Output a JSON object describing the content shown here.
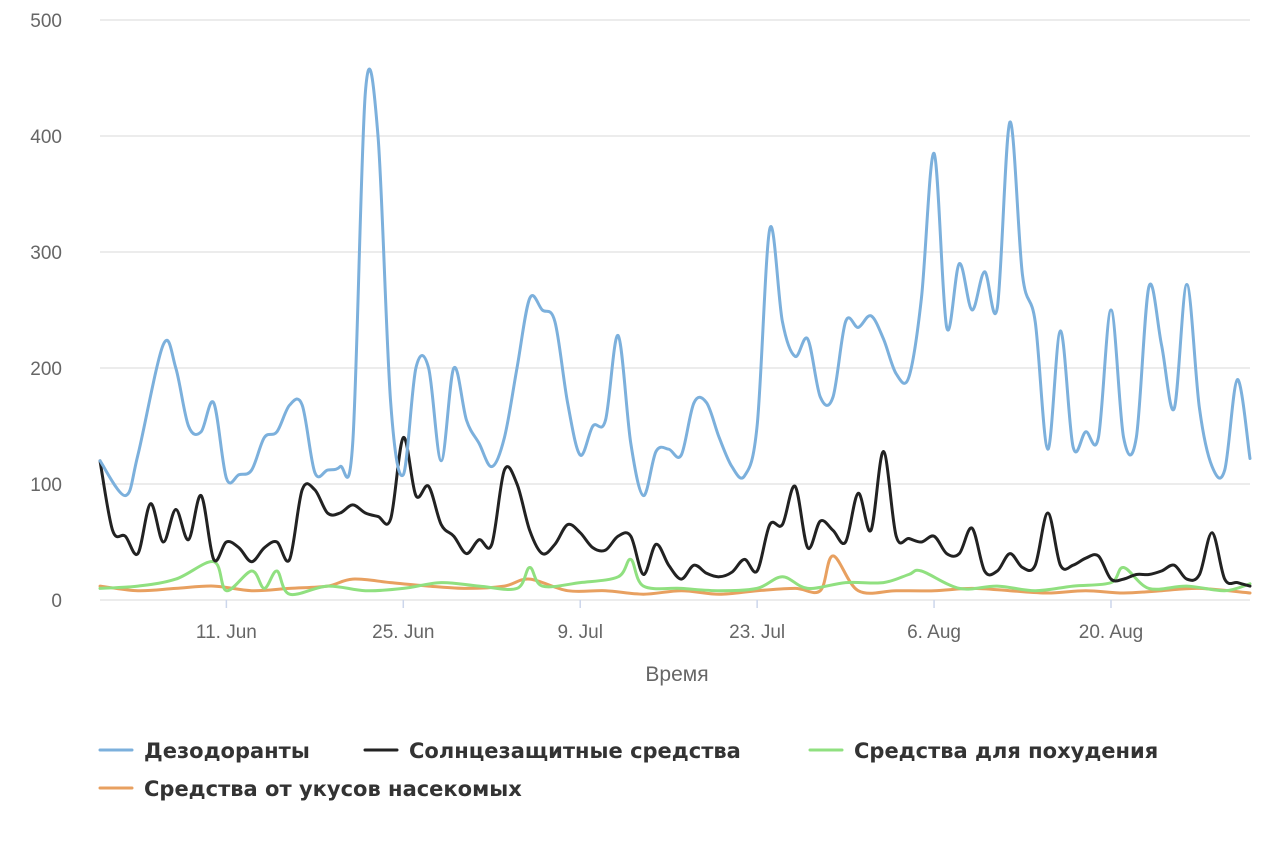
{
  "chart_data": {
    "type": "line",
    "title": "",
    "xlabel": "Время",
    "ylabel": "",
    "ylim": [
      0,
      500
    ],
    "y_ticks": [
      0,
      100,
      200,
      300,
      400,
      500
    ],
    "x_tick_labels": [
      "11. Jun",
      "25. Jun",
      "9. Jul",
      "23. Jul",
      "6. Aug",
      "20. Aug"
    ],
    "x_tick_dates": [
      "2018-06-11",
      "2018-06-25",
      "2018-07-09",
      "2018-07-23",
      "2018-08-06",
      "2018-08-20"
    ],
    "x_range": [
      "2018-06-01",
      "2018-08-31"
    ],
    "grid": true,
    "legend_position": "bottom-left",
    "series": [
      {
        "name": "Дезодоранты",
        "color": "#7cb0dc",
        "x": [
          "2018-06-01",
          "2018-06-03",
          "2018-06-04",
          "2018-06-06",
          "2018-06-07",
          "2018-06-08",
          "2018-06-09",
          "2018-06-10",
          "2018-06-11",
          "2018-06-12",
          "2018-06-13",
          "2018-06-14",
          "2018-06-15",
          "2018-06-16",
          "2018-06-17",
          "2018-06-18",
          "2018-06-19",
          "2018-06-20",
          "2018-06-21",
          "2018-06-22",
          "2018-06-23",
          "2018-06-24",
          "2018-06-25",
          "2018-06-26",
          "2018-06-27",
          "2018-06-28",
          "2018-06-29",
          "2018-06-30",
          "2018-07-01",
          "2018-07-02",
          "2018-07-03",
          "2018-07-04",
          "2018-07-05",
          "2018-07-06",
          "2018-07-07",
          "2018-07-08",
          "2018-07-09",
          "2018-07-10",
          "2018-07-11",
          "2018-07-12",
          "2018-07-13",
          "2018-07-14",
          "2018-07-15",
          "2018-07-16",
          "2018-07-17",
          "2018-07-18",
          "2018-07-19",
          "2018-07-20",
          "2018-07-21",
          "2018-07-22",
          "2018-07-23",
          "2018-07-24",
          "2018-07-25",
          "2018-07-26",
          "2018-07-27",
          "2018-07-28",
          "2018-07-29",
          "2018-07-30",
          "2018-07-31",
          "2018-08-01",
          "2018-08-02",
          "2018-08-03",
          "2018-08-04",
          "2018-08-05",
          "2018-08-06",
          "2018-08-07",
          "2018-08-08",
          "2018-08-09",
          "2018-08-10",
          "2018-08-11",
          "2018-08-12",
          "2018-08-13",
          "2018-08-14",
          "2018-08-15",
          "2018-08-16",
          "2018-08-17",
          "2018-08-18",
          "2018-08-19",
          "2018-08-20",
          "2018-08-21",
          "2018-08-22",
          "2018-08-23",
          "2018-08-24",
          "2018-08-25",
          "2018-08-26",
          "2018-08-27",
          "2018-08-28",
          "2018-08-29",
          "2018-08-30",
          "2018-08-31"
        ],
        "values": [
          120,
          90,
          125,
          220,
          200,
          150,
          145,
          170,
          105,
          108,
          112,
          140,
          145,
          168,
          168,
          110,
          112,
          115,
          135,
          438,
          400,
          170,
          108,
          200,
          200,
          120,
          200,
          155,
          135,
          115,
          140,
          200,
          260,
          250,
          240,
          170,
          125,
          150,
          155,
          228,
          135,
          90,
          128,
          130,
          125,
          170,
          170,
          140,
          115,
          107,
          150,
          320,
          240,
          210,
          225,
          175,
          175,
          240,
          235,
          245,
          225,
          195,
          192,
          260,
          385,
          235,
          290,
          250,
          283,
          252,
          412,
          280,
          240,
          130,
          232,
          132,
          145,
          140,
          250,
          140,
          140,
          270,
          220,
          165,
          272,
          165,
          115,
          112,
          190,
          122
        ]
      },
      {
        "name": "Солнцезащитные средства",
        "color": "#222222",
        "x": [
          "2018-06-01",
          "2018-06-02",
          "2018-06-03",
          "2018-06-04",
          "2018-06-05",
          "2018-06-06",
          "2018-06-07",
          "2018-06-08",
          "2018-06-09",
          "2018-06-10",
          "2018-06-11",
          "2018-06-12",
          "2018-06-13",
          "2018-06-14",
          "2018-06-15",
          "2018-06-16",
          "2018-06-17",
          "2018-06-18",
          "2018-06-19",
          "2018-06-20",
          "2018-06-21",
          "2018-06-22",
          "2018-06-23",
          "2018-06-24",
          "2018-06-25",
          "2018-06-26",
          "2018-06-27",
          "2018-06-28",
          "2018-06-29",
          "2018-06-30",
          "2018-07-01",
          "2018-07-02",
          "2018-07-03",
          "2018-07-04",
          "2018-07-05",
          "2018-07-06",
          "2018-07-07",
          "2018-07-08",
          "2018-07-09",
          "2018-07-10",
          "2018-07-11",
          "2018-07-12",
          "2018-07-13",
          "2018-07-14",
          "2018-07-15",
          "2018-07-16",
          "2018-07-17",
          "2018-07-18",
          "2018-07-19",
          "2018-07-20",
          "2018-07-21",
          "2018-07-22",
          "2018-07-23",
          "2018-07-24",
          "2018-07-25",
          "2018-07-26",
          "2018-07-27",
          "2018-07-28",
          "2018-07-29",
          "2018-07-30",
          "2018-07-31",
          "2018-08-01",
          "2018-08-02",
          "2018-08-03",
          "2018-08-04",
          "2018-08-05",
          "2018-08-06",
          "2018-08-07",
          "2018-08-08",
          "2018-08-09",
          "2018-08-10",
          "2018-08-11",
          "2018-08-12",
          "2018-08-13",
          "2018-08-14",
          "2018-08-15",
          "2018-08-16",
          "2018-08-17",
          "2018-08-18",
          "2018-08-19",
          "2018-08-20",
          "2018-08-21",
          "2018-08-22",
          "2018-08-23",
          "2018-08-24",
          "2018-08-25",
          "2018-08-26",
          "2018-08-27",
          "2018-08-28",
          "2018-08-29",
          "2018-08-30",
          "2018-08-31"
        ],
        "values": [
          120,
          60,
          55,
          40,
          83,
          50,
          78,
          52,
          90,
          35,
          50,
          45,
          33,
          45,
          50,
          35,
          95,
          95,
          75,
          75,
          82,
          75,
          72,
          70,
          140,
          90,
          98,
          65,
          55,
          40,
          52,
          48,
          112,
          100,
          60,
          40,
          48,
          65,
          58,
          45,
          43,
          55,
          55,
          22,
          48,
          30,
          18,
          30,
          23,
          20,
          24,
          35,
          25,
          65,
          65,
          98,
          45,
          68,
          60,
          50,
          92,
          60,
          128,
          55,
          53,
          50,
          55,
          40,
          40,
          62,
          25,
          25,
          40,
          28,
          30,
          75,
          30,
          30,
          36,
          38,
          18,
          18,
          22,
          22,
          25,
          30,
          18,
          22,
          58,
          18,
          15,
          12
        ]
      },
      {
        "name": "Средства для похудения",
        "color": "#90e080",
        "x": [
          "2018-06-01",
          "2018-06-04",
          "2018-06-07",
          "2018-06-10",
          "2018-06-11",
          "2018-06-13",
          "2018-06-14",
          "2018-06-15",
          "2018-06-16",
          "2018-06-19",
          "2018-06-22",
          "2018-06-25",
          "2018-06-28",
          "2018-07-01",
          "2018-07-04",
          "2018-07-05",
          "2018-07-06",
          "2018-07-09",
          "2018-07-12",
          "2018-07-13",
          "2018-07-14",
          "2018-07-17",
          "2018-07-20",
          "2018-07-23",
          "2018-07-25",
          "2018-07-27",
          "2018-07-30",
          "2018-08-02",
          "2018-08-04",
          "2018-08-05",
          "2018-08-08",
          "2018-08-11",
          "2018-08-14",
          "2018-08-17",
          "2018-08-20",
          "2018-08-21",
          "2018-08-23",
          "2018-08-26",
          "2018-08-29",
          "2018-08-31"
        ],
        "values": [
          10,
          12,
          18,
          33,
          8,
          25,
          10,
          25,
          5,
          12,
          8,
          10,
          15,
          12,
          10,
          28,
          12,
          15,
          20,
          35,
          12,
          10,
          8,
          10,
          20,
          10,
          15,
          15,
          22,
          25,
          10,
          12,
          8,
          12,
          15,
          28,
          10,
          12,
          8,
          14
        ]
      },
      {
        "name": "Средства от укусов насекомых",
        "color": "#e8a060",
        "x": [
          "2018-06-01",
          "2018-06-04",
          "2018-06-07",
          "2018-06-10",
          "2018-06-13",
          "2018-06-16",
          "2018-06-19",
          "2018-06-21",
          "2018-06-24",
          "2018-06-27",
          "2018-06-30",
          "2018-07-03",
          "2018-07-05",
          "2018-07-08",
          "2018-07-11",
          "2018-07-14",
          "2018-07-17",
          "2018-07-20",
          "2018-07-23",
          "2018-07-26",
          "2018-07-28",
          "2018-07-29",
          "2018-07-31",
          "2018-08-03",
          "2018-08-06",
          "2018-08-09",
          "2018-08-12",
          "2018-08-15",
          "2018-08-18",
          "2018-08-21",
          "2018-08-24",
          "2018-08-27",
          "2018-08-31"
        ],
        "values": [
          12,
          8,
          10,
          12,
          8,
          10,
          12,
          18,
          15,
          12,
          10,
          12,
          18,
          8,
          8,
          5,
          8,
          5,
          8,
          10,
          8,
          38,
          8,
          8,
          8,
          10,
          8,
          6,
          8,
          6,
          8,
          10,
          6
        ]
      }
    ]
  }
}
